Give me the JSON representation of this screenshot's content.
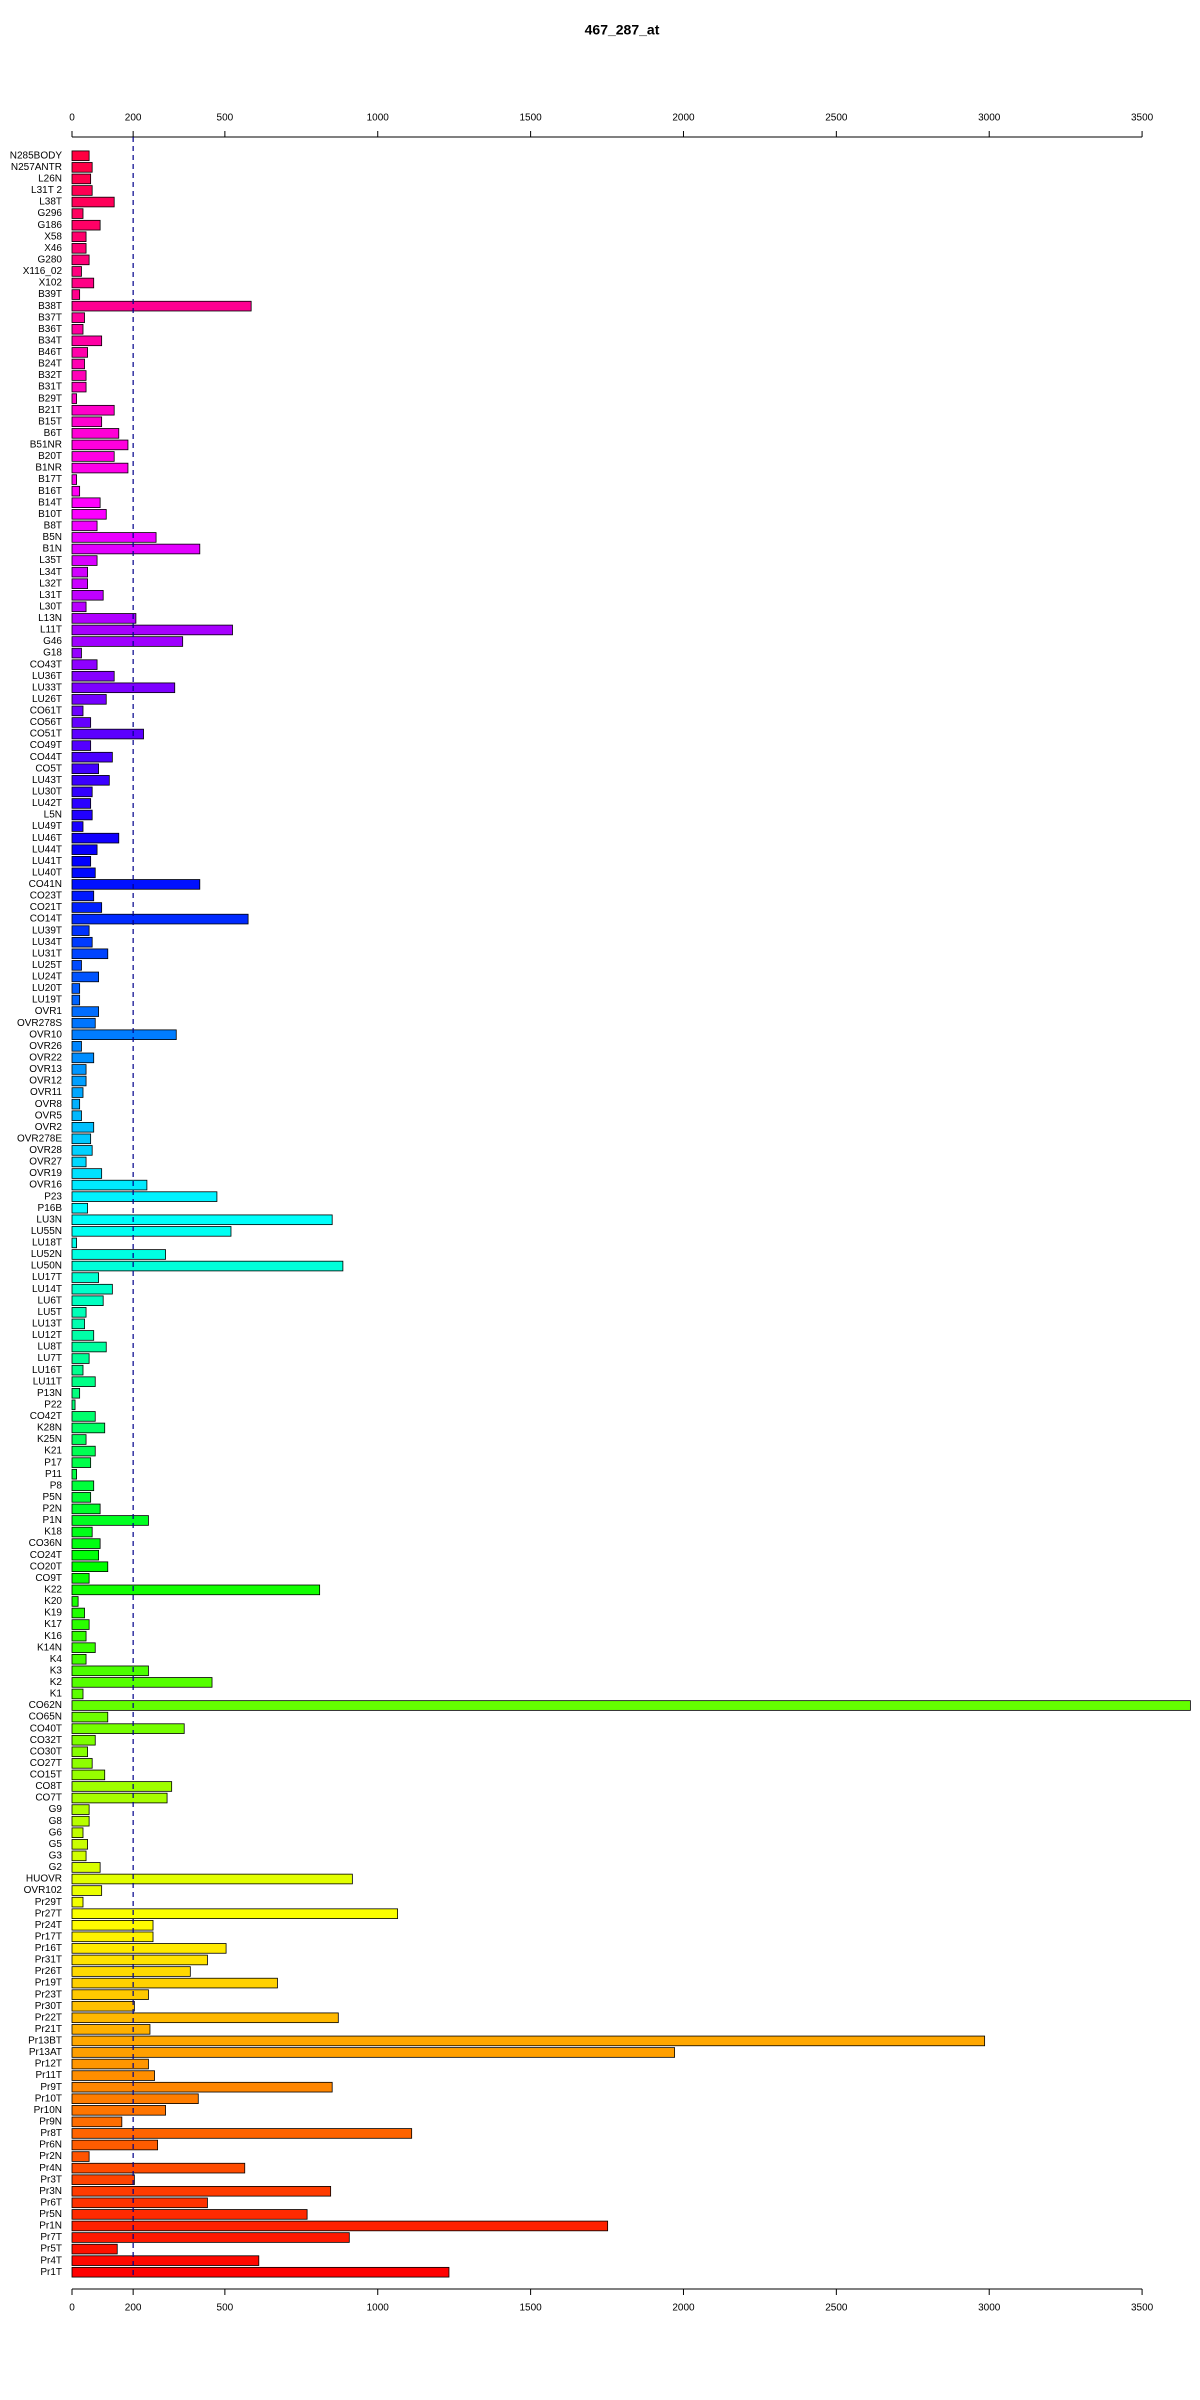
{
  "chart_data": {
    "type": "barh",
    "title": "467_287_at",
    "categories": [
      "N285BODY",
      "N257ANTR",
      "L26N",
      "L31T 2",
      "L38T",
      "G296",
      "G186",
      "X58",
      "X46",
      "G280",
      "X116_02",
      "X102",
      "B39T",
      "B38T",
      "B37T",
      "B36T",
      "B34T",
      "B46T",
      "B24T",
      "B32T",
      "B31T",
      "B29T",
      "B21T",
      "B15T",
      "B6T",
      "B51NR",
      "B20T",
      "B1NR",
      "B17T",
      "B16T",
      "B14T",
      "B10T",
      "B8T",
      "B5N",
      "B1N",
      "L35T",
      "L34T",
      "L32T",
      "L31T",
      "L30T",
      "L13N",
      "L11T",
      "G46",
      "G18",
      "CO43T",
      "LU36T",
      "LU33T",
      "LU26T",
      "CO61T",
      "CO56T",
      "CO51T",
      "CO49T",
      "CO44T",
      "CO5T",
      "LU43T",
      "LU30T",
      "LU42T",
      "L5N",
      "LU49T",
      "LU46T",
      "LU44T",
      "LU41T",
      "LU40T",
      "CO41N",
      "CO23T",
      "CO21T",
      "CO14T",
      "LU39T",
      "LU34T",
      "LU31T",
      "LU25T",
      "LU24T",
      "LU20T",
      "LU19T",
      "OVR1",
      "OVR278S",
      "OVR10",
      "OVR26",
      "OVR22",
      "OVR13",
      "OVR12",
      "OVR11",
      "OVR8",
      "OVR5",
      "OVR2",
      "OVR278E",
      "OVR28",
      "OVR27",
      "OVR19",
      "OVR16",
      "P23",
      "P16B",
      "LU3N",
      "LU55N",
      "LU18T",
      "LU52N",
      "LU50N",
      "LU17T",
      "LU14T",
      "LU6T",
      "LU5T",
      "LU13T",
      "LU12T",
      "LU8T",
      "LU7T",
      "LU16T",
      "LU11T",
      "P13N",
      "P22",
      "CO42T",
      "K28N",
      "K25N",
      "K21",
      "P17",
      "P11",
      "P8",
      "P5N",
      "P2N",
      "P1N",
      "K18",
      "CO36N",
      "CO24T",
      "CO20T",
      "CO9T",
      "K22",
      "K20",
      "K19",
      "K17",
      "K16",
      "K14N",
      "K4",
      "K3",
      "K2",
      "K1",
      "CO62N",
      "CO65N",
      "CO40T",
      "CO32T",
      "CO30T",
      "CO27T",
      "CO15T",
      "CO8T",
      "CO7T",
      "G9",
      "G8",
      "G6",
      "G5",
      "G3",
      "G2",
      "HUOVR",
      "OVR102",
      "Pr29T",
      "Pr27T",
      "Pr24T",
      "Pr17T",
      "Pr16T",
      "Pr31T",
      "Pr26T",
      "Pr19T",
      "Pr23T",
      "Pr30T",
      "Pr22T",
      "Pr21T",
      "Pr13BT",
      "Pr13AT",
      "Pr12T",
      "Pr11T",
      "Pr9T",
      "Pr10T",
      "Pr10N",
      "Pr9N",
      "Pr8T",
      "Pr6N",
      "Pr2N",
      "Pr4N",
      "Pr3T",
      "Pr3N",
      "Pr6T",
      "Pr5N",
      "Pr1N",
      "Pr7T",
      "Pr5T",
      "Pr4T",
      "Pr1T"
    ],
    "values": [
      56,
      66,
      61,
      66,
      138,
      36,
      92,
      46,
      46,
      56,
      31,
      71,
      25,
      586,
      41,
      36,
      97,
      51,
      41,
      46,
      46,
      15,
      138,
      97,
      153,
      183,
      138,
      183,
      15,
      25,
      92,
      112,
      82,
      275,
      418,
      82,
      51,
      51,
      102,
      46,
      209,
      525,
      362,
      31,
      82,
      138,
      336,
      112,
      36,
      61,
      234,
      61,
      132,
      87,
      122,
      66,
      61,
      66,
      36,
      153,
      82,
      61,
      76,
      418,
      71,
      97,
      576,
      56,
      66,
      117,
      31,
      87,
      25,
      25,
      87,
      76,
      341,
      31,
      71,
      46,
      46,
      36,
      25,
      31,
      71,
      61,
      66,
      46,
      97,
      245,
      474,
      51,
      851,
      520,
      15,
      306,
      886,
      87,
      132,
      102,
      46,
      41,
      71,
      112,
      56,
      36,
      76,
      25,
      10,
      76,
      107,
      46,
      76,
      61,
      15,
      71,
      61,
      92,
      250,
      66,
      92,
      87,
      117,
      56,
      810,
      20,
      41,
      56,
      46,
      76,
      46,
      250,
      458,
      36,
      3658,
      117,
      367,
      76,
      51,
      66,
      107,
      326,
      311,
      56,
      56,
      36,
      51,
      46,
      92,
      917,
      97,
      36,
      1065,
      265,
      265,
      504,
      443,
      387,
      672,
      250,
      204,
      871,
      255,
      2985,
      1971,
      250,
      270,
      851,
      413,
      306,
      163,
      1111,
      280,
      56,
      565,
      204,
      846,
      443,
      769,
      1752,
      907,
      148,
      611,
      1233
    ],
    "colors": [
      "#ff0040",
      "#ff00ff",
      "#0000ff",
      "#00ffff",
      "#00ff00",
      "#ffff00",
      "#ff0000"
    ],
    "xlim": [
      0,
      3660
    ],
    "xticks": [
      0,
      200,
      500,
      1000,
      1500,
      2000,
      2500,
      3000,
      3500
    ],
    "reference_line": 200
  }
}
